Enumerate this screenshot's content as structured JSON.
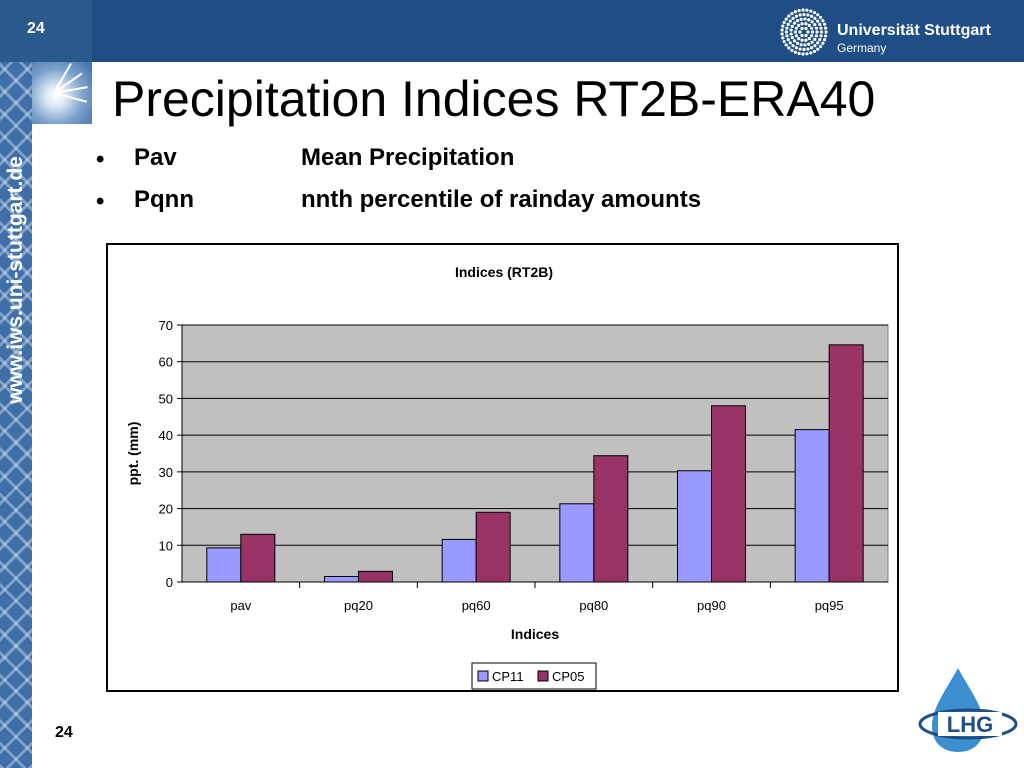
{
  "slide": {
    "page_number": "24",
    "title": "Precipitation Indices RT2B-ERA40",
    "side_url": "www.iws.uni-stuttgart.de"
  },
  "university": {
    "name": "Universität Stuttgart",
    "country": "Germany"
  },
  "bullets": [
    {
      "key": "Pav",
      "description": "Mean Precipitation"
    },
    {
      "key": "Pqnn",
      "description": "nnth percentile of rainday amounts"
    }
  ],
  "logo_text": "LHG",
  "colors": {
    "topbar": "#1f4e86",
    "cp11": "#9999ff",
    "cp05": "#993366",
    "plot_bg": "#c0c0c0"
  },
  "chart_data": {
    "type": "bar",
    "title": "Indices (RT2B)",
    "xlabel": "Indices",
    "ylabel": "ppt.  (mm)",
    "categories": [
      "pav",
      "pq20",
      "pq60",
      "pq80",
      "pq90",
      "pq95"
    ],
    "series": [
      {
        "name": "CP11",
        "color": "#9999ff",
        "values": [
          9.3,
          1.5,
          11.6,
          21.3,
          30.3,
          41.5
        ]
      },
      {
        "name": "CP05",
        "color": "#993366",
        "values": [
          13.0,
          2.9,
          19.0,
          34.4,
          48.0,
          64.6
        ]
      }
    ],
    "ylim": [
      0,
      70
    ],
    "yticks": [
      0,
      10,
      20,
      30,
      40,
      50,
      60,
      70
    ],
    "grid": true,
    "legend": "bottom"
  }
}
